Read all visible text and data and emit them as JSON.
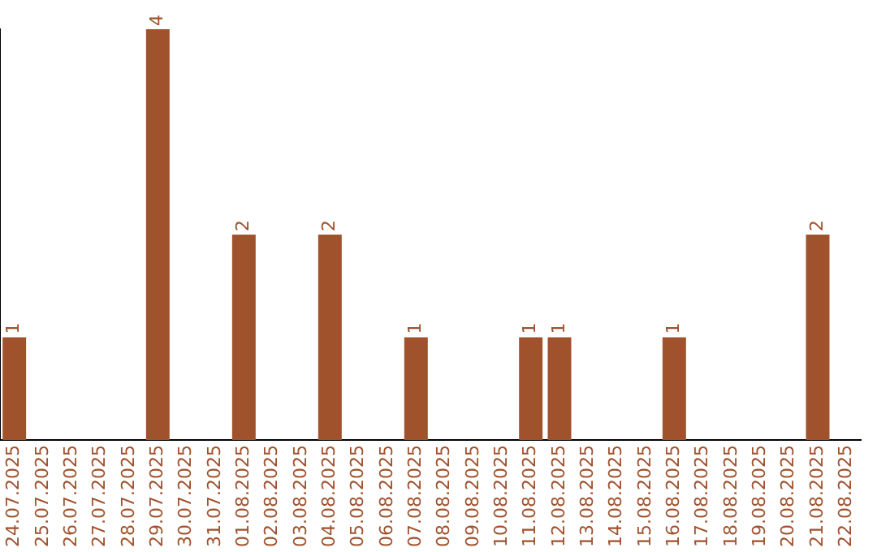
{
  "chart_data": {
    "type": "bar",
    "categories": [
      "24.07.2025",
      "25.07.2025",
      "26.07.2025",
      "27.07.2025",
      "28.07.2025",
      "29.07.2025",
      "30.07.2025",
      "31.07.2025",
      "01.08.2025",
      "02.08.2025",
      "03.08.2025",
      "04.08.2025",
      "05.08.2025",
      "06.08.2025",
      "07.08.2025",
      "08.08.2025",
      "09.08.2025",
      "10.08.2025",
      "11.08.2025",
      "12.08.2025",
      "13.08.2025",
      "14.08.2025",
      "15.08.2025",
      "16.08.2025",
      "17.08.2025",
      "18.08.2025",
      "19.08.2025",
      "20.08.2025",
      "21.08.2025",
      "22.08.2025"
    ],
    "values": [
      1,
      0,
      0,
      0,
      0,
      4,
      0,
      0,
      2,
      0,
      0,
      2,
      0,
      0,
      1,
      0,
      0,
      0,
      1,
      1,
      0,
      0,
      0,
      1,
      0,
      0,
      0,
      0,
      2,
      0
    ],
    "value_labels": [
      "1",
      null,
      null,
      null,
      null,
      "4",
      null,
      null,
      "2",
      null,
      null,
      "2",
      null,
      null,
      "1",
      null,
      null,
      null,
      "1",
      "1",
      null,
      null,
      null,
      "1",
      null,
      null,
      null,
      null,
      "2",
      null
    ],
    "color": "#a0522d",
    "grid": false,
    "legend": false,
    "tick_labels": "x"
  }
}
